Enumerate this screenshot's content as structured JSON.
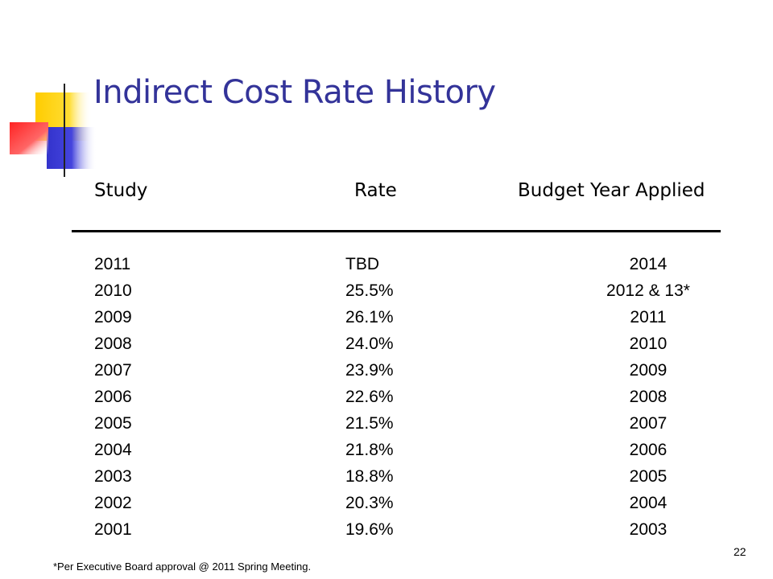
{
  "slide": {
    "title": "Indirect Cost Rate History",
    "page_number": "22",
    "footnote": "*Per Executive Board approval @ 2011 Spring Meeting."
  },
  "table": {
    "headers": {
      "study": "Study",
      "rate": "Rate",
      "budget_year": "Budget Year Applied"
    },
    "rows": [
      {
        "study": "2011",
        "rate": "TBD",
        "budget_year": "2014"
      },
      {
        "study": "2010",
        "rate": "25.5%",
        "budget_year": "2012 & 13*"
      },
      {
        "study": "2009",
        "rate": "26.1%",
        "budget_year": "2011"
      },
      {
        "study": "2008",
        "rate": "24.0%",
        "budget_year": "2010"
      },
      {
        "study": "2007",
        "rate": "23.9%",
        "budget_year": "2009"
      },
      {
        "study": "2006",
        "rate": "22.6%",
        "budget_year": "2008"
      },
      {
        "study": "2005",
        "rate": "21.5%",
        "budget_year": "2007"
      },
      {
        "study": "2004",
        "rate": "21.8%",
        "budget_year": "2006"
      },
      {
        "study": "2003",
        "rate": "18.8%",
        "budget_year": "2005"
      },
      {
        "study": "2002",
        "rate": "20.3%",
        "budget_year": "2004"
      },
      {
        "study": "2001",
        "rate": "19.6%",
        "budget_year": "2003"
      }
    ]
  },
  "theme": {
    "title_color": "#333399",
    "square_yellow": "#ffcc00",
    "square_blue": "#3333cc",
    "square_red": "#ff3333"
  }
}
